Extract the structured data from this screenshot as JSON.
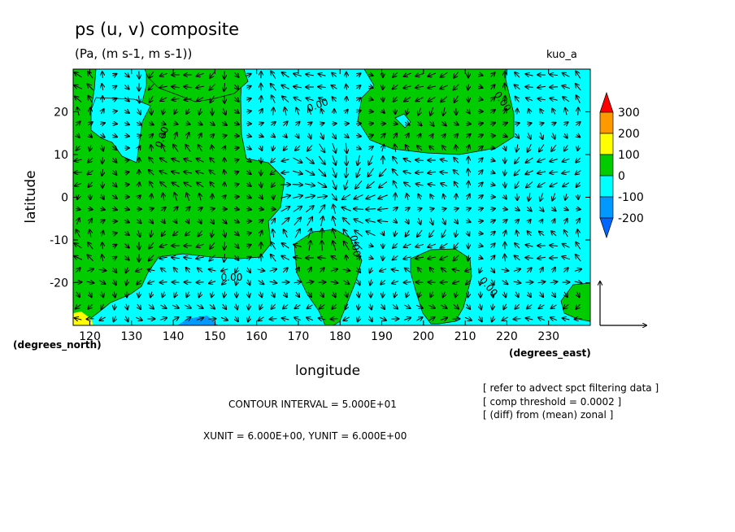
{
  "chart_data": {
    "type": "heatmap",
    "title": "ps (u, v) composite",
    "subtitle": "(Pa, (m s-1, m s-1))",
    "run_id": "kuo_a",
    "xlabel": "longitude",
    "ylabel": "latitude",
    "x_unit_label": "(degrees_east)",
    "y_unit_label": "(degrees_north)",
    "xlim": [
      116,
      240
    ],
    "ylim": [
      -30,
      30
    ],
    "x_ticks": [
      120,
      130,
      140,
      150,
      160,
      170,
      180,
      190,
      200,
      210,
      220,
      230
    ],
    "y_ticks": [
      20,
      10,
      0,
      -10,
      -20
    ],
    "contour_label": "0.00",
    "colorbar": {
      "levels": [
        300,
        200,
        100,
        0,
        -100,
        -200
      ],
      "colors": [
        "#ff0000",
        "#ff9900",
        "#ffff00",
        "#00cc00",
        "#00ffff",
        "#0099ff",
        "#0066ff"
      ]
    },
    "contour_interval": "CONTOUR INTERVAL = 5.000E+01",
    "units_line": "XUNIT = 6.000E+00, YUNIT = 6.000E+00",
    "notes": [
      "[ refer to advect spct filtering data ]",
      "[ comp threshold = 0.0002 ]",
      "[ (diff) from (mean) zonal ]"
    ]
  }
}
